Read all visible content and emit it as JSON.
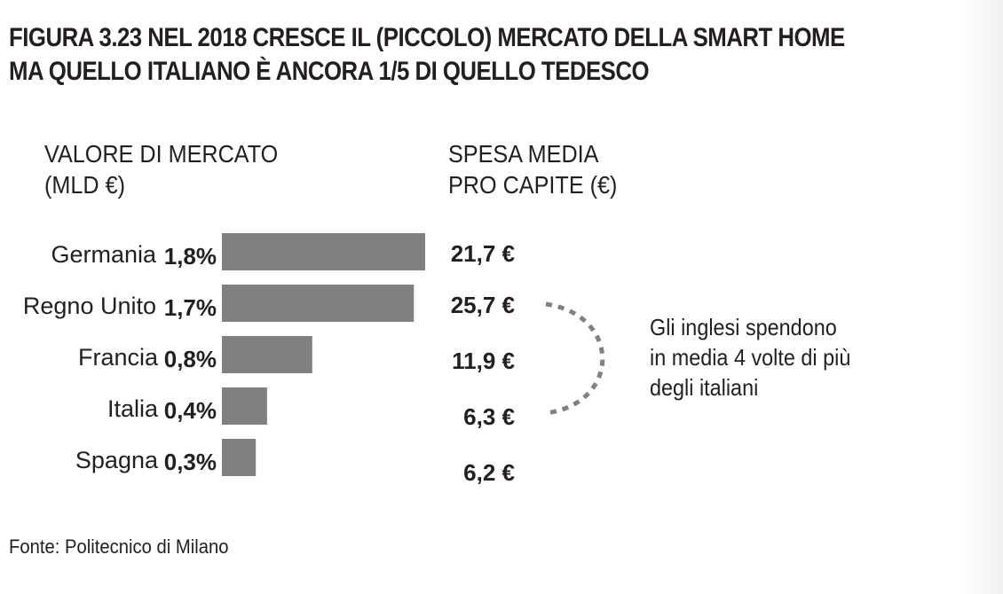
{
  "title_line1": "FIGURA 3.23 NEL 2018 CRESCE IL (PICCOLO) MERCATO DELLA SMART HOME",
  "title_line2": "MA QUELLO ITALIANO È ANCORA 1/5 DI QUELLO TEDESCO",
  "source": "Fonte: Politecnico di Milano",
  "note": {
    "line1": "Gli inglesi spendono",
    "line2": "in media 4 volte di più",
    "line3": "degli italiani"
  },
  "colors": {
    "bar": "#808083",
    "text": "#231f20",
    "dashed_arc": "#808083"
  },
  "chart_data": {
    "type": "bar",
    "orientation": "horizontal",
    "title": "Nel 2018 cresce il (piccolo) mercato della smart home",
    "categories": [
      "Germania",
      "Regno Unito",
      "Francia",
      "Italia",
      "Spagna"
    ],
    "series": [
      {
        "name": "VALORE DI MERCATO (MLD €)",
        "header_line1": "VALORE DI MERCATO",
        "header_line2": "(MLD €)",
        "values": [
          1.8,
          1.7,
          0.8,
          0.4,
          0.3
        ],
        "labels": [
          "1,8%",
          "1,7%",
          "0,8%",
          "0,4%",
          "0,3%"
        ]
      },
      {
        "name": "SPESA MEDIA PRO CAPITE (€)",
        "header_line1": "SPESA MEDIA",
        "header_line2": "PRO CAPITE (€)",
        "values": [
          21.7,
          25.7,
          11.9,
          6.3,
          6.2
        ],
        "labels": [
          "21,7 €",
          "25,7 €",
          "11,9 €",
          "6,3 €",
          "6,2 €"
        ]
      }
    ],
    "xlim": [
      0,
      1.8
    ],
    "grid": false,
    "legend": "none",
    "annotation": "Gli inglesi spendono in media 4 volte di più degli italiani"
  }
}
